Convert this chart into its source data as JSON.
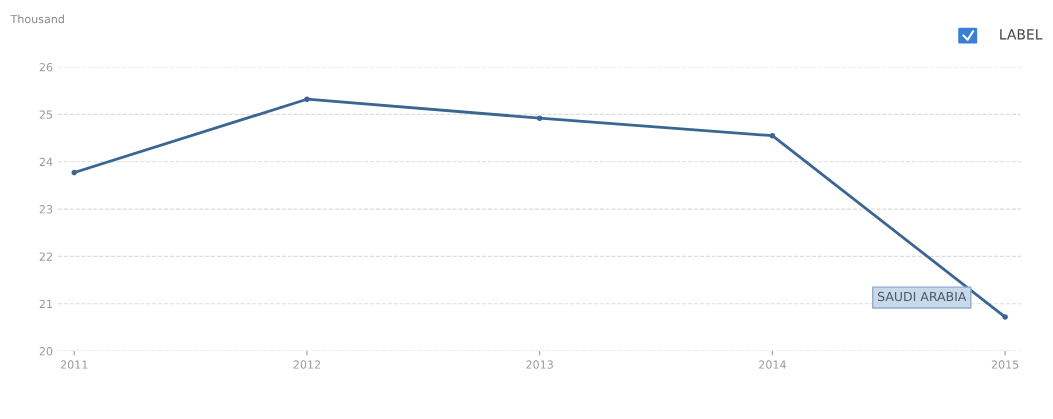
{
  "chart_data": {
    "type": "line",
    "ylabel": "Thousand",
    "x": [
      2011,
      2012,
      2013,
      2014,
      2015
    ],
    "series": [
      {
        "name": "SAUDI ARABIA",
        "color": "#3b6693",
        "values": [
          23.77,
          25.32,
          24.92,
          24.55,
          20.72
        ]
      }
    ],
    "xlim": [
      2010.93,
      2015.07
    ],
    "xticks": [
      2011,
      2012,
      2013,
      2014,
      2015
    ],
    "ylim": [
      20,
      26
    ],
    "yticks": [
      20,
      21,
      22,
      23,
      24,
      25,
      26
    ],
    "grid": "y",
    "marker": "circle",
    "line_style": "solid",
    "annotations": [
      "LABEL"
    ]
  }
}
